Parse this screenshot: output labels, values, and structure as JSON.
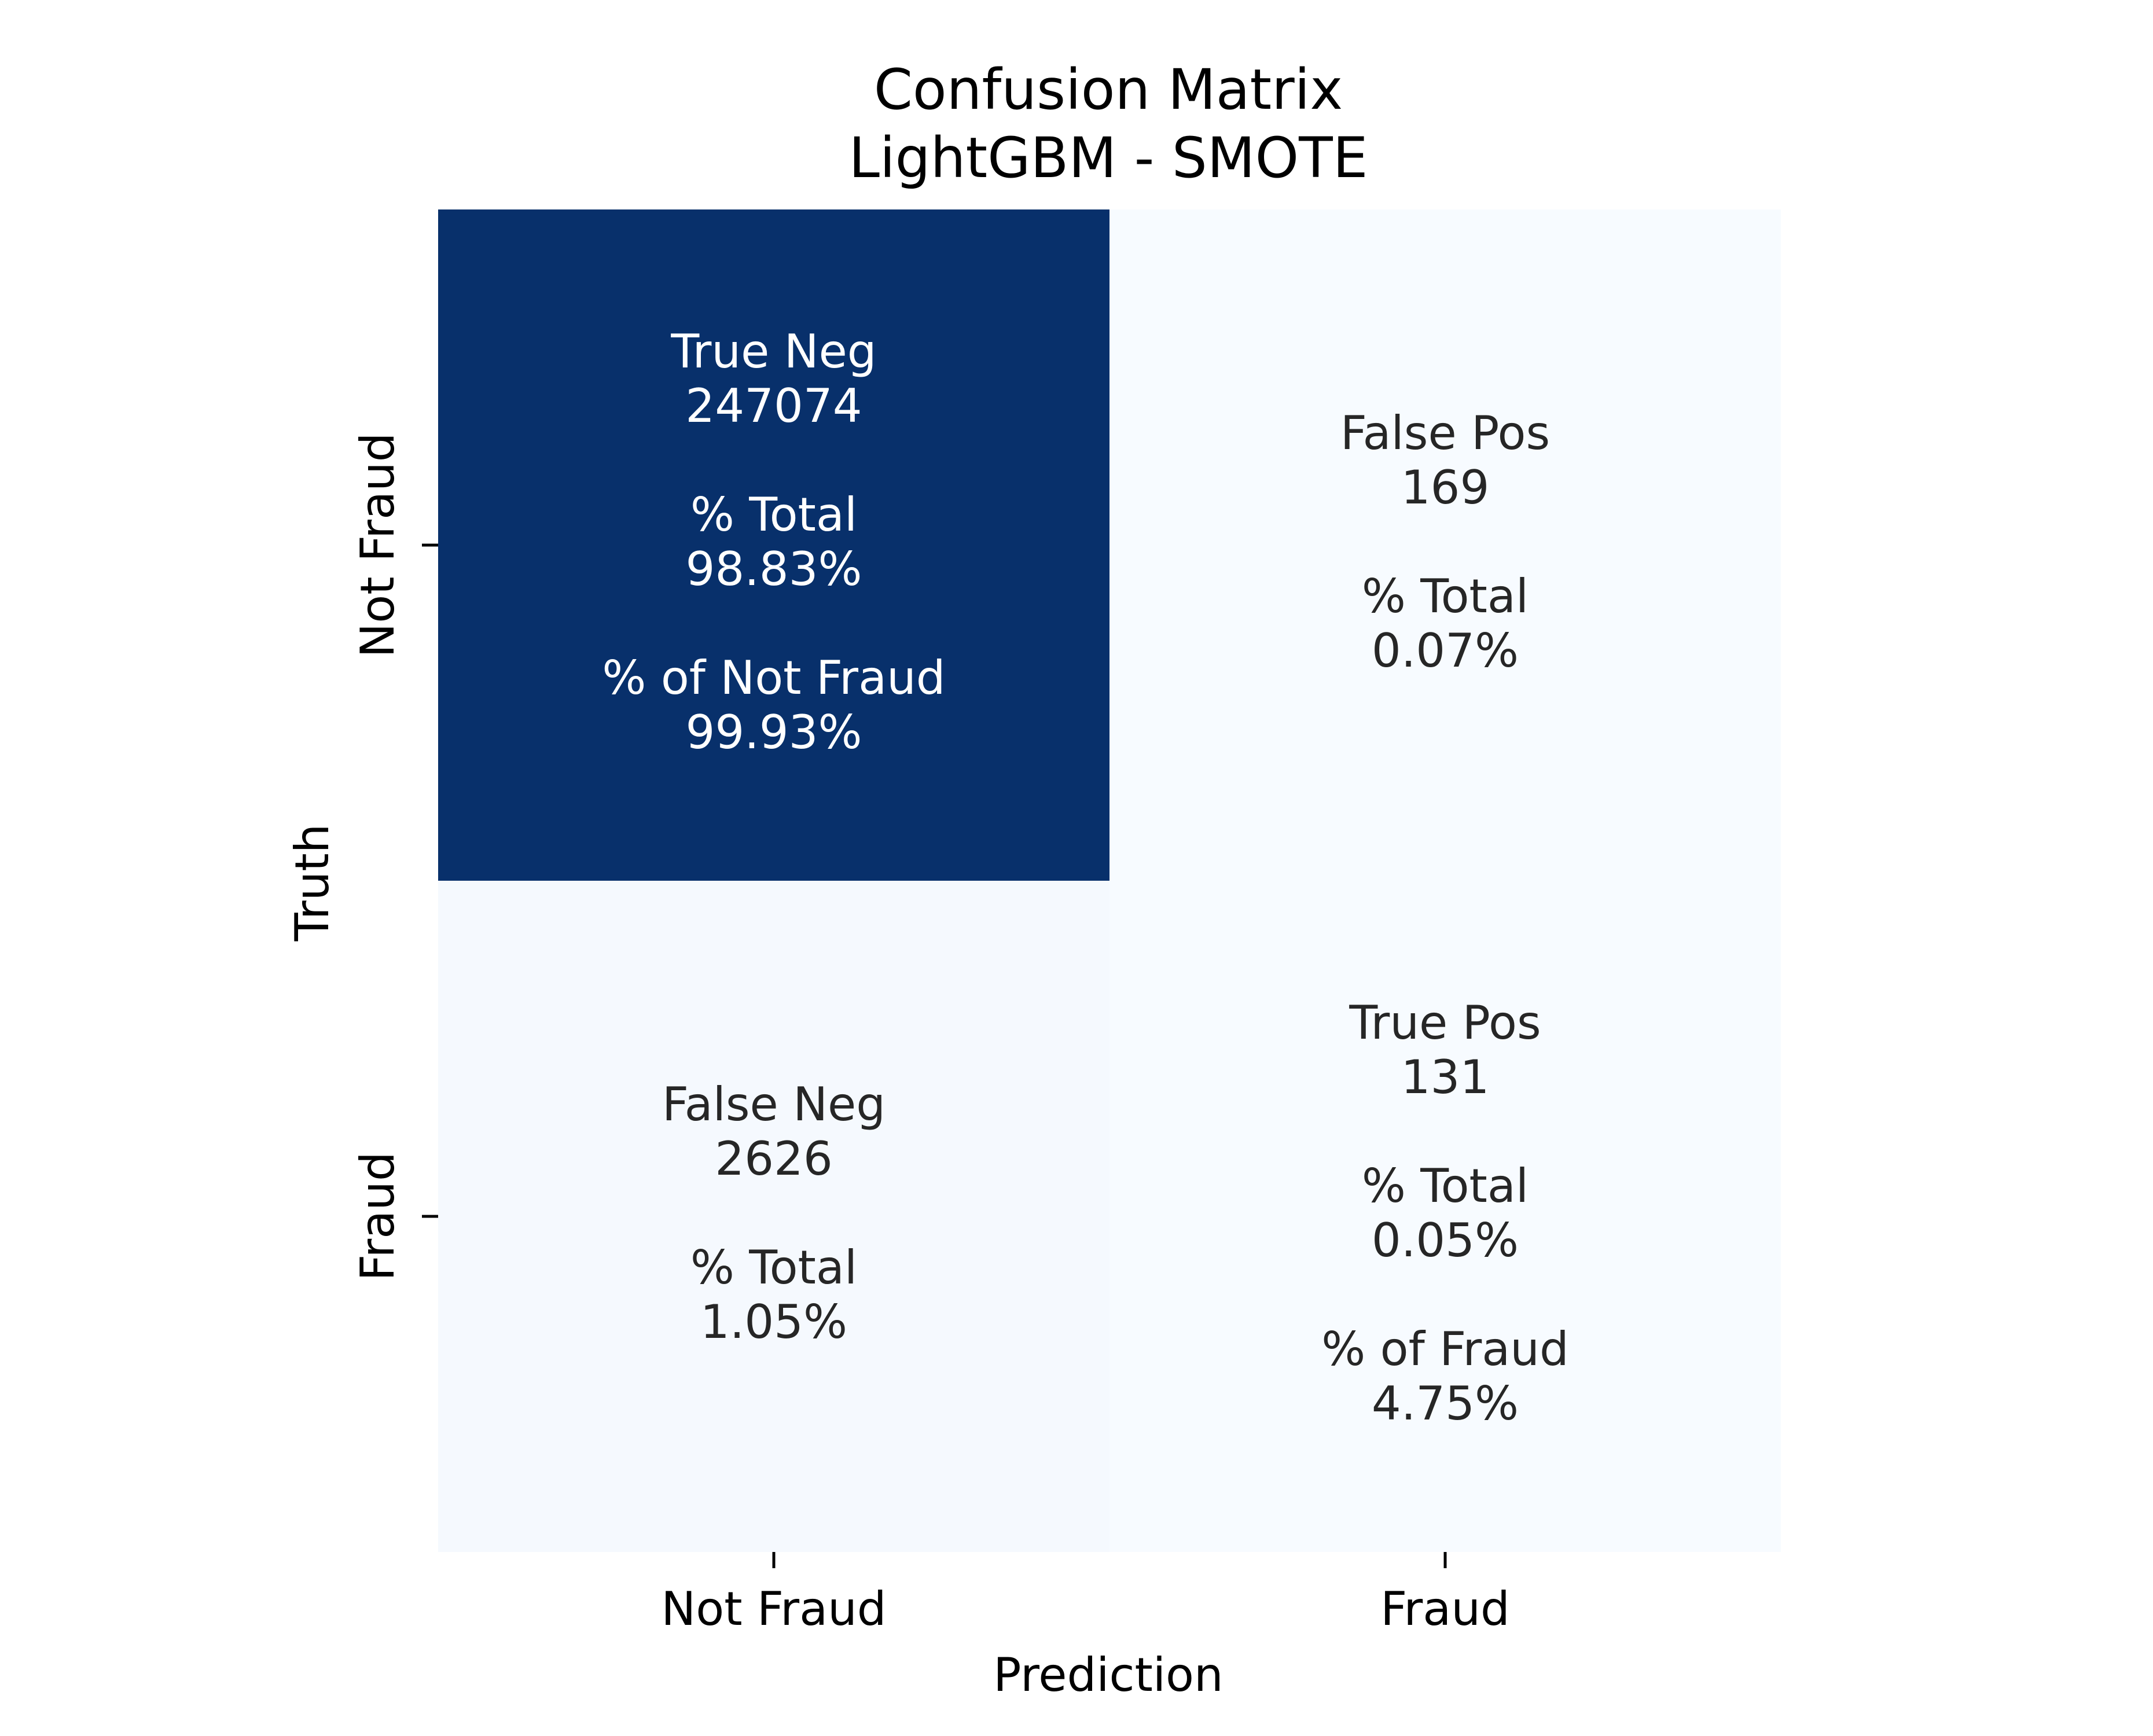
{
  "chart_data": {
    "type": "heatmap",
    "title": "Confusion Matrix",
    "subtitle": "LightGBM - SMOTE",
    "xlabel": "Prediction",
    "ylabel": "Truth",
    "x_categories": [
      "Not Fraud",
      "Fraud"
    ],
    "y_categories": [
      "Not Fraud",
      "Fraud"
    ],
    "colormap": "Blues",
    "colors": {
      "high": "#08306b",
      "low": "#f7fbff",
      "text_on_dark": "#ffffff",
      "text_on_light": "#262626",
      "axis_text": "#000000"
    },
    "colorbar": false,
    "cells": [
      {
        "row": 0,
        "col": 0,
        "name": "True Neg",
        "count": "247074",
        "value": 247074,
        "lines": [
          "True Neg",
          "247074",
          "",
          "% Total",
          "98.83%",
          "",
          "% of Not Fraud",
          "99.93%"
        ]
      },
      {
        "row": 0,
        "col": 1,
        "name": "False Pos",
        "count": "169",
        "value": 169,
        "lines": [
          "False Pos",
          "169",
          "",
          "% Total",
          "0.07%"
        ]
      },
      {
        "row": 1,
        "col": 0,
        "name": "False Neg",
        "count": "2626",
        "value": 2626,
        "lines": [
          "False Neg",
          "2626",
          "",
          "% Total",
          "1.05%"
        ]
      },
      {
        "row": 1,
        "col": 1,
        "name": "True Pos",
        "count": "131",
        "value": 131,
        "lines": [
          "True Pos",
          "131",
          "",
          "% Total",
          "0.05%",
          "",
          "% of Fraud",
          "4.75%"
        ]
      }
    ]
  }
}
